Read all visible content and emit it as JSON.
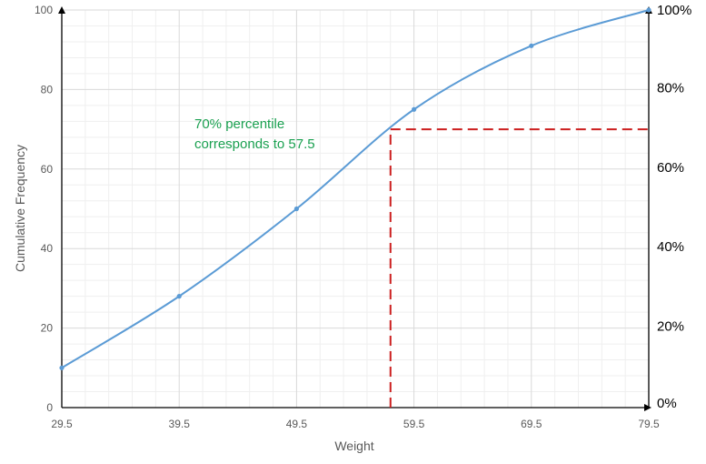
{
  "colors": {
    "series": "#5b9bd5",
    "annotation_text": "#1aa050",
    "marker_line": "#cc1f1f",
    "grid_major": "#d9d9d9",
    "grid_minor": "#efefef",
    "axis": "#000000"
  },
  "chart_data": {
    "type": "line",
    "smooth": true,
    "xlabel": "Weight",
    "ylabel": "Cumulative Frequency",
    "x_ticks": [
      "29.5",
      "39.5",
      "49.5",
      "59.5",
      "69.5",
      "79.5"
    ],
    "y_ticks": [
      "0",
      "20",
      "40",
      "60",
      "80",
      "100"
    ],
    "y2_ticks": [
      "0%",
      "20%",
      "40%",
      "60%",
      "80%",
      "100%"
    ],
    "xlim": [
      29.5,
      79.5
    ],
    "ylim": [
      0,
      100
    ],
    "y2lim": [
      0,
      100
    ],
    "grid": true,
    "legend": "none",
    "series": [
      {
        "x": [
          29.5,
          39.5,
          49.5,
          59.5,
          69.5,
          79.5
        ],
        "y": [
          10,
          28,
          50,
          75,
          91,
          100
        ]
      }
    ],
    "annotation": {
      "lines": [
        "70% percentile",
        "corresponds to 57.5"
      ],
      "percentile_x": 57.5,
      "percentile_y": 70
    }
  }
}
